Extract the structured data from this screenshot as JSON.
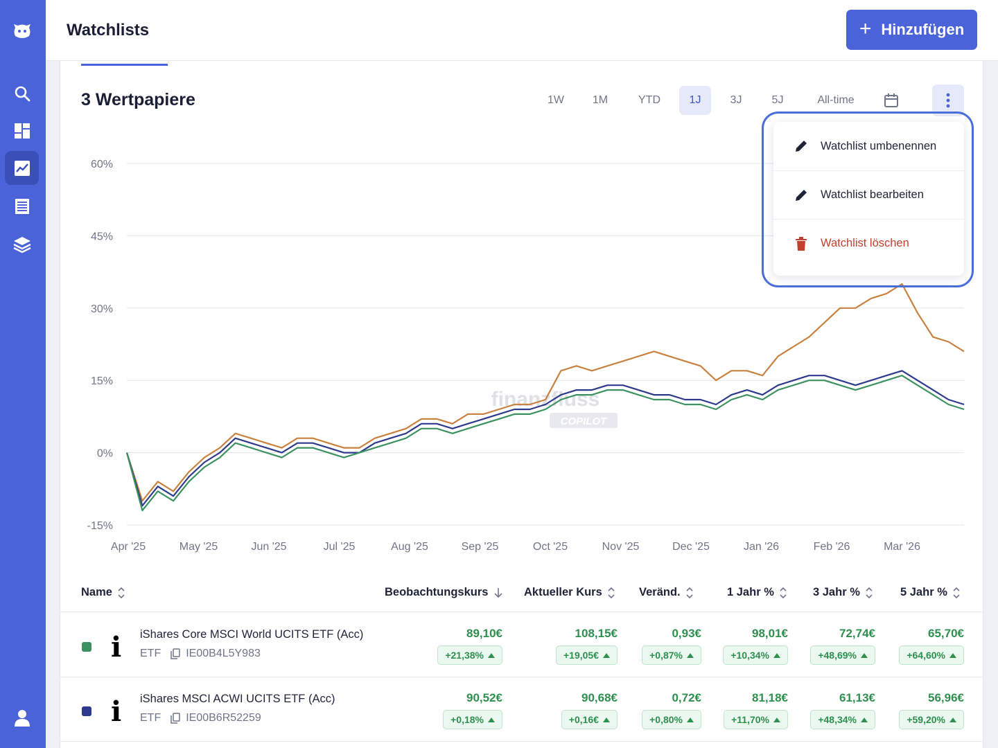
{
  "header": {
    "title": "Watchlists",
    "add_label": "Hinzufügen"
  },
  "sidebar": {
    "items": [
      "logo-icon",
      "search-icon",
      "dashboard-icon",
      "chart-icon",
      "list-icon",
      "layers-icon",
      "user-icon"
    ],
    "active": "chart-icon"
  },
  "card": {
    "title": "3 Wertpapiere"
  },
  "ranges": [
    "1W",
    "1M",
    "YTD",
    "1J",
    "3J",
    "5J",
    "All-time"
  ],
  "active_range": "1J",
  "menu": {
    "rename": "Watchlist umbenennen",
    "edit": "Watchlist bearbeiten",
    "delete": "Watchlist löschen"
  },
  "watermark": {
    "brand": "finanzfluss",
    "sub": "COPILOT"
  },
  "chart_data": {
    "type": "line",
    "y_ticks": [
      "60%",
      "45%",
      "30%",
      "15%",
      "0%",
      "-15%"
    ],
    "x_ticks": [
      "Apr '25",
      "May '25",
      "Jun '25",
      "Jul '25",
      "Aug '25",
      "Sep '25",
      "Oct '25",
      "Nov '25",
      "Dec '25",
      "Jan '26",
      "Feb '26",
      "Mar '26"
    ],
    "ylim": [
      -15,
      60
    ],
    "grid": true,
    "colors": [
      "#c8813e",
      "#2d3a8c",
      "#3c9160"
    ],
    "series": [
      {
        "values": [
          0,
          -10,
          -6,
          -8,
          -4,
          -1,
          1,
          4,
          3,
          2,
          1,
          3,
          3,
          2,
          1,
          1,
          3,
          4,
          5,
          7,
          7,
          6,
          8,
          8,
          9,
          10,
          10,
          11,
          17,
          18,
          17,
          18,
          19,
          20,
          21,
          20,
          19,
          18,
          15,
          17,
          17,
          16,
          20,
          22,
          24,
          27,
          30,
          30,
          32,
          33,
          35,
          29,
          24,
          23,
          21
        ]
      },
      {
        "values": [
          0,
          -11,
          -7,
          -9,
          -5,
          -2,
          0,
          3,
          2,
          1,
          0,
          2,
          2,
          1,
          0,
          0,
          2,
          3,
          4,
          6,
          6,
          5,
          6,
          7,
          8,
          9,
          9,
          10,
          12,
          13,
          13,
          14,
          14,
          13,
          12,
          12,
          11,
          11,
          10,
          12,
          13,
          12,
          14,
          15,
          16,
          16,
          15,
          14,
          15,
          16,
          17,
          15,
          13,
          11,
          10
        ]
      },
      {
        "values": [
          0,
          -12,
          -8,
          -10,
          -6,
          -3,
          -1,
          2,
          1,
          0,
          -1,
          1,
          1,
          0,
          -1,
          0,
          1,
          2,
          3,
          5,
          5,
          4,
          5,
          6,
          7,
          8,
          8,
          9,
          11,
          12,
          12,
          13,
          13,
          12,
          11,
          11,
          10,
          10,
          9,
          11,
          12,
          11,
          13,
          14,
          15,
          15,
          14,
          13,
          14,
          15,
          16,
          14,
          12,
          10,
          9
        ]
      }
    ]
  },
  "table": {
    "columns": [
      "Name",
      "Beobachtungskurs",
      "Aktueller Kurs",
      "Veränd.",
      "1 Jahr %",
      "3 Jahr %",
      "5 Jahr %"
    ],
    "rows": [
      {
        "color": "#3b9160",
        "logo": "i",
        "name": "iShares Core MSCI World UCITS ETF (Acc)",
        "type": "ETF",
        "isin": "IE00B4L5Y983",
        "cells": [
          [
            "89,10€",
            "+21,38%"
          ],
          [
            "108,15€",
            "+19,05€"
          ],
          [
            "0,93€",
            "+0,87%"
          ],
          [
            "98,01€",
            "+10,34%"
          ],
          [
            "72,74€",
            "+48,69%"
          ],
          [
            "65,70€",
            "+64,60%"
          ]
        ]
      },
      {
        "color": "#2d3a8c",
        "logo": "i",
        "name": "iShares MSCI ACWI UCITS ETF (Acc)",
        "type": "ETF",
        "isin": "IE00B6R52259",
        "cells": [
          [
            "90,52€",
            "+0,18%"
          ],
          [
            "90,68€",
            "+0,16€"
          ],
          [
            "0,72€",
            "+0,80%"
          ],
          [
            "81,18€",
            "+11,70%"
          ],
          [
            "61,13€",
            "+48,34%"
          ],
          [
            "56,96€",
            "+59,20%"
          ]
        ]
      }
    ]
  }
}
